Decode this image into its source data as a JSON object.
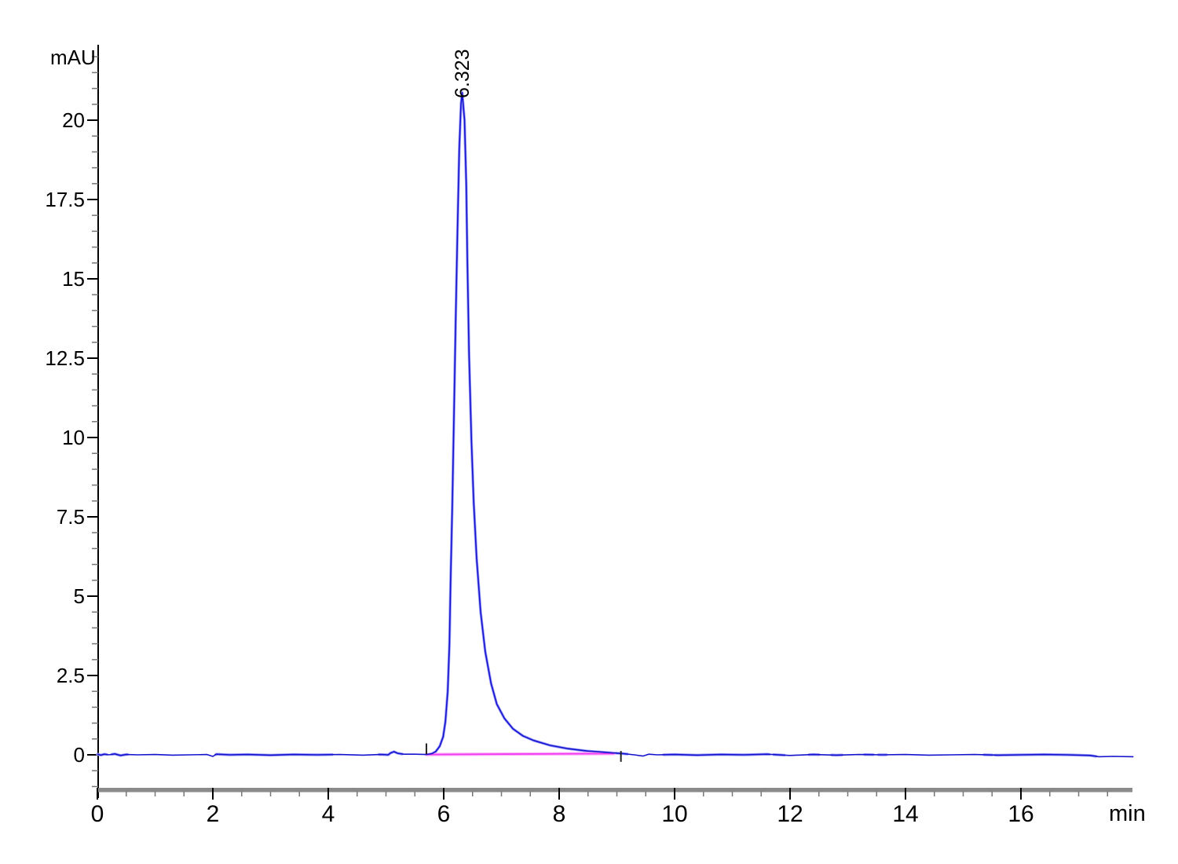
{
  "page": {
    "background": "#ffffff",
    "description": "HPLC-SEC chromatogram, single peak trace"
  },
  "labels": {
    "y_unit": "mAU",
    "x_unit": "min"
  },
  "chart_data": {
    "type": "line",
    "title": "",
    "xlabel": "min",
    "ylabel": "mAU",
    "xlim": [
      0,
      17.95
    ],
    "ylim": [
      -1.1,
      22.35
    ],
    "grid": false,
    "legend": false,
    "x_major_ticks": [
      0,
      2,
      4,
      6,
      8,
      10,
      12,
      14,
      16
    ],
    "x_major_tick_labels": [
      "0",
      "2",
      "4",
      "6",
      "8",
      "10",
      "12",
      "14",
      "16"
    ],
    "x_minor_step": 0.5,
    "x_minor_range": [
      0,
      17.5
    ],
    "y_major_ticks": [
      0,
      2.5,
      5,
      7.5,
      10,
      12.5,
      15,
      17.5,
      20
    ],
    "y_major_tick_labels": [
      "0",
      "2.5",
      "5",
      "7.5",
      "10",
      "12.5",
      "15",
      "17.5",
      "20"
    ],
    "y_minor_step": 0.5,
    "y_minor_range": [
      -1,
      22
    ],
    "peaks": [
      {
        "label": "6.323",
        "retention_time_min": 6.323,
        "height_mAU": 20.9,
        "integration_start_min": 5.7,
        "integration_end_min": 9.07
      }
    ],
    "baseline_segment": {
      "from": [
        5.7,
        0.01
      ],
      "to": [
        8.95,
        0.04
      ],
      "color": "#ee3af0",
      "halo_color": "#ffadf8"
    },
    "series": [
      {
        "name": "UV signal",
        "color": "#1414cf",
        "halo_color": "#9a9af8",
        "points": [
          [
            0.0,
            0.02
          ],
          [
            0.06,
            -0.01
          ],
          [
            0.12,
            0.02
          ],
          [
            0.2,
            0.0
          ],
          [
            0.3,
            0.03
          ],
          [
            0.4,
            -0.02
          ],
          [
            0.5,
            0.01
          ],
          [
            0.7,
            0.0
          ],
          [
            1.0,
            0.01
          ],
          [
            1.3,
            -0.01
          ],
          [
            1.6,
            0.0
          ],
          [
            1.9,
            0.01
          ],
          [
            2.0,
            -0.05
          ],
          [
            2.06,
            0.02
          ],
          [
            2.3,
            0.0
          ],
          [
            2.6,
            0.01
          ],
          [
            3.0,
            -0.01
          ],
          [
            3.4,
            0.01
          ],
          [
            3.8,
            0.0
          ],
          [
            4.2,
            0.01
          ],
          [
            4.6,
            -0.01
          ],
          [
            4.9,
            0.01
          ],
          [
            5.04,
            0.0
          ],
          [
            5.08,
            0.06
          ],
          [
            5.14,
            0.1
          ],
          [
            5.2,
            0.05
          ],
          [
            5.3,
            0.02
          ],
          [
            5.5,
            0.02
          ],
          [
            5.7,
            0.01
          ],
          [
            5.8,
            0.04
          ],
          [
            5.86,
            0.1
          ],
          [
            5.93,
            0.27
          ],
          [
            5.99,
            0.57
          ],
          [
            6.03,
            1.06
          ],
          [
            6.07,
            2.0
          ],
          [
            6.1,
            3.5
          ],
          [
            6.12,
            5.5
          ],
          [
            6.15,
            7.95
          ],
          [
            6.18,
            10.9
          ],
          [
            6.21,
            13.9
          ],
          [
            6.24,
            16.6
          ],
          [
            6.27,
            19.1
          ],
          [
            6.3,
            20.5
          ],
          [
            6.32,
            20.87
          ],
          [
            6.36,
            20.0
          ],
          [
            6.39,
            18.0
          ],
          [
            6.41,
            15.6
          ],
          [
            6.44,
            12.6
          ],
          [
            6.48,
            9.9
          ],
          [
            6.52,
            7.95
          ],
          [
            6.57,
            6.2
          ],
          [
            6.64,
            4.5
          ],
          [
            6.72,
            3.25
          ],
          [
            6.82,
            2.25
          ],
          [
            6.92,
            1.6
          ],
          [
            7.05,
            1.15
          ],
          [
            7.2,
            0.82
          ],
          [
            7.37,
            0.6
          ],
          [
            7.56,
            0.45
          ],
          [
            7.84,
            0.3
          ],
          [
            8.13,
            0.2
          ],
          [
            8.49,
            0.12
          ],
          [
            8.86,
            0.07
          ],
          [
            9.1,
            0.04
          ],
          [
            9.3,
            0.0
          ],
          [
            9.45,
            -0.04
          ],
          [
            9.55,
            0.02
          ],
          [
            9.7,
            0.0
          ],
          [
            10.0,
            0.01
          ],
          [
            10.4,
            -0.01
          ],
          [
            10.8,
            0.01
          ],
          [
            11.2,
            0.0
          ],
          [
            11.6,
            0.02
          ],
          [
            12.0,
            -0.02
          ],
          [
            12.4,
            0.01
          ],
          [
            12.8,
            -0.01
          ],
          [
            13.2,
            0.01
          ],
          [
            13.6,
            0.0
          ],
          [
            14.0,
            0.01
          ],
          [
            14.4,
            -0.01
          ],
          [
            14.8,
            0.0
          ],
          [
            15.2,
            0.01
          ],
          [
            15.6,
            -0.01
          ],
          [
            16.0,
            0.0
          ],
          [
            16.4,
            0.01
          ],
          [
            16.8,
            0.0
          ],
          [
            17.2,
            -0.02
          ],
          [
            17.35,
            -0.06
          ],
          [
            17.6,
            -0.05
          ],
          [
            17.95,
            -0.06
          ]
        ]
      }
    ],
    "halo_segments_min": [
      [
        0.0,
        0.16
      ],
      [
        0.25,
        0.52
      ],
      [
        2.05,
        4.07
      ],
      [
        4.88,
        5.28
      ],
      [
        5.78,
        9.18
      ],
      [
        9.81,
        11.64
      ],
      [
        11.72,
        11.9
      ],
      [
        12.33,
        12.5
      ],
      [
        12.72,
        12.9
      ],
      [
        13.29,
        13.44
      ],
      [
        13.53,
        13.67
      ],
      [
        15.36,
        15.5
      ],
      [
        15.55,
        17.3
      ]
    ],
    "colors": {
      "axis": "#000000",
      "minor_tick": "#777777",
      "tick_label": "#000000",
      "baseline_bar": "#8a8a8a",
      "background": "#ffffff"
    }
  }
}
